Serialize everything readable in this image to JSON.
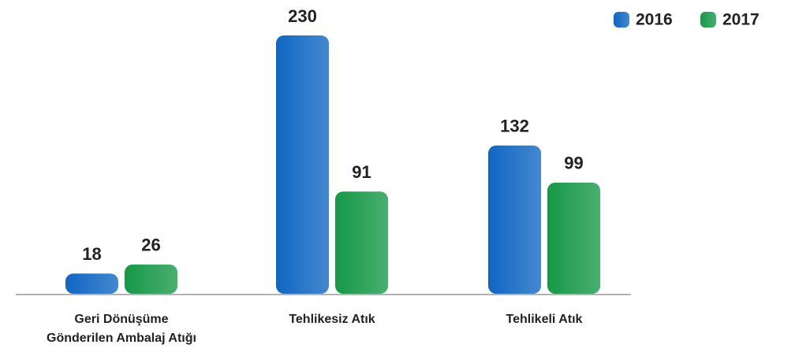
{
  "chart_data": {
    "type": "bar",
    "categories": [
      "Geri Dönüşüme\nGönderilen Ambalaj Atığı",
      "Tehlikesiz Atık",
      "Tehlikeli Atık"
    ],
    "series": [
      {
        "name": "2016",
        "color": "#0f66c2",
        "values": [
          18,
          230,
          132
        ]
      },
      {
        "name": "2017",
        "color": "#169848",
        "values": [
          26,
          91,
          99
        ]
      }
    ],
    "legend": "top-right"
  }
}
